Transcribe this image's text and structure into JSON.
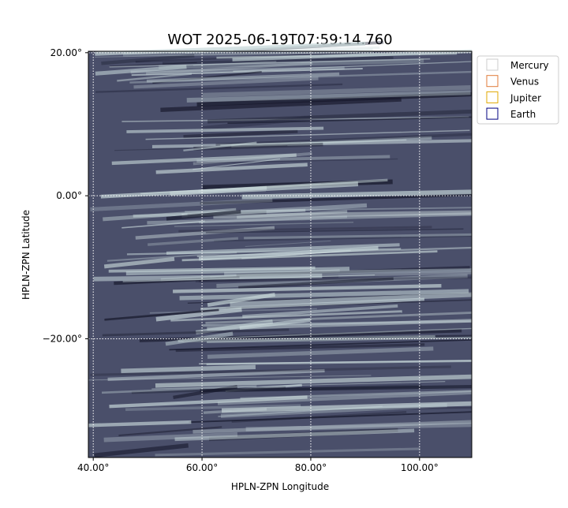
{
  "chart_data": {
    "type": "image",
    "title": "WOT 2025-06-19T07:59:14.760",
    "x_label": "HPLN-ZPN Longitude",
    "y_label": "HPLN-ZPN Latitude",
    "xlim": [
      39.1,
      109.6
    ],
    "ylim": [
      -36.6,
      20.2
    ],
    "xticks": [
      {
        "value": 40,
        "label": "40.00°"
      },
      {
        "value": 60,
        "label": "60.00°"
      },
      {
        "value": 80,
        "label": "80.00°"
      },
      {
        "value": 100,
        "label": "100.00°"
      }
    ],
    "yticks": [
      {
        "value": 20,
        "label": "20.00°"
      },
      {
        "value": 0,
        "label": "0.00°"
      },
      {
        "value": -20,
        "label": "−20.00°"
      }
    ],
    "grid": true,
    "legend": [
      {
        "name": "Mercury",
        "color": "#cccccc"
      },
      {
        "name": "Venus",
        "color": "#e07b39"
      },
      {
        "name": "Jupiter",
        "color": "#e0a800"
      },
      {
        "name": "Earth",
        "color": "#000080"
      }
    ],
    "legend_position": "upper right"
  }
}
